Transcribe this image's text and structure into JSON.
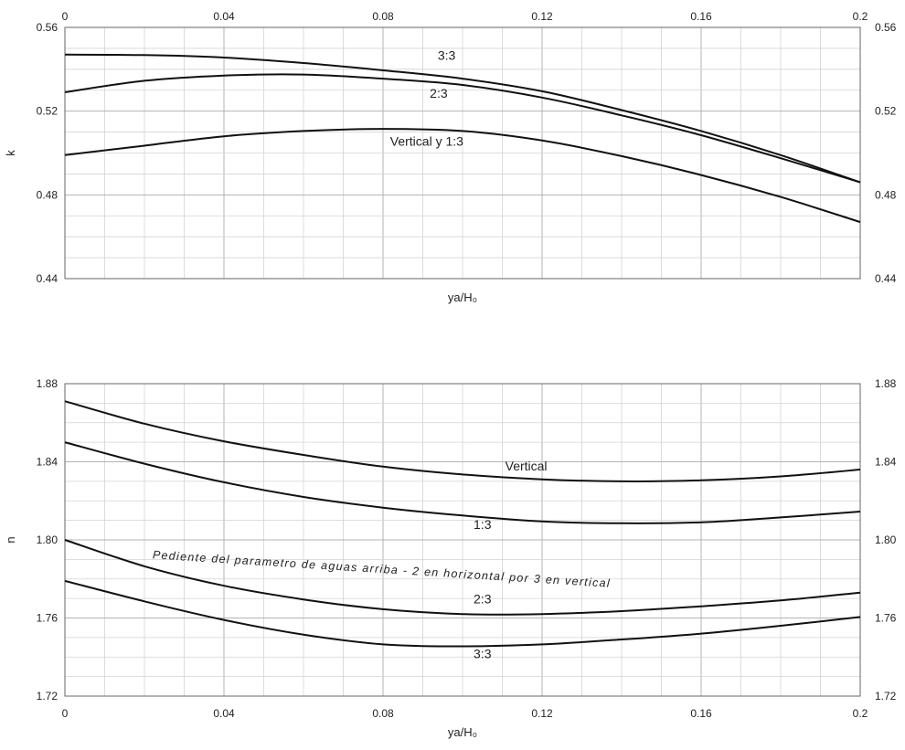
{
  "chart_data": [
    {
      "type": "line",
      "xlabel": "ya/H₀",
      "ylabel": "k",
      "xlim": [
        0,
        0.2
      ],
      "ylim": [
        0.44,
        0.56
      ],
      "x_ticks": [
        "0",
        "0.04",
        "0.08",
        "0.12",
        "0.16",
        "0.2"
      ],
      "y_ticks": [
        "0.56",
        "0.52",
        "0.48",
        "0.44"
      ],
      "x_tick_position": "top",
      "grid": true,
      "series": [
        {
          "name": "3:3",
          "x": [
            0,
            0.02,
            0.04,
            0.06,
            0.08,
            0.1,
            0.12,
            0.14,
            0.16,
            0.18,
            0.2
          ],
          "values": [
            0.547,
            0.5468,
            0.5456,
            0.543,
            0.5395,
            0.5355,
            0.5295,
            0.5205,
            0.5105,
            0.499,
            0.486
          ]
        },
        {
          "name": "2:3",
          "x": [
            0,
            0.02,
            0.04,
            0.06,
            0.08,
            0.1,
            0.12,
            0.14,
            0.16,
            0.18,
            0.2
          ],
          "values": [
            0.529,
            0.5345,
            0.537,
            0.5375,
            0.5355,
            0.5325,
            0.5265,
            0.518,
            0.5085,
            0.4975,
            0.486
          ]
        },
        {
          "name": "Vertical y 1:3",
          "x": [
            0,
            0.02,
            0.04,
            0.06,
            0.08,
            0.1,
            0.12,
            0.14,
            0.16,
            0.18,
            0.2
          ],
          "values": [
            0.499,
            0.5035,
            0.508,
            0.5105,
            0.5115,
            0.5105,
            0.506,
            0.4985,
            0.4895,
            0.479,
            0.467
          ]
        }
      ]
    },
    {
      "type": "line",
      "xlabel": "ya/H₀",
      "ylabel": "n",
      "xlim": [
        0,
        0.2
      ],
      "ylim": [
        1.72,
        1.88
      ],
      "x_ticks": [
        "0",
        "0.04",
        "0.08",
        "0.12",
        "0.16",
        "0.2"
      ],
      "y_ticks": [
        "1.88",
        "1.84",
        "1.80",
        "1.76",
        "1.72"
      ],
      "x_tick_position": "bottom",
      "grid": true,
      "annotation": "Pediente del parametro de aguas arriba - 2 en horizontal por 3 en vertical",
      "series": [
        {
          "name": "Vertical",
          "x": [
            0,
            0.02,
            0.04,
            0.06,
            0.08,
            0.1,
            0.12,
            0.14,
            0.16,
            0.18,
            0.2
          ],
          "values": [
            1.871,
            1.8595,
            1.8505,
            1.8435,
            1.8375,
            1.8335,
            1.831,
            1.83,
            1.8305,
            1.8325,
            1.836
          ]
        },
        {
          "name": "1:3",
          "x": [
            0,
            0.02,
            0.04,
            0.06,
            0.08,
            0.1,
            0.12,
            0.14,
            0.16,
            0.18,
            0.2
          ],
          "values": [
            1.85,
            1.839,
            1.8295,
            1.822,
            1.8165,
            1.8125,
            1.8095,
            1.8085,
            1.809,
            1.8115,
            1.8145
          ]
        },
        {
          "name": "2:3",
          "x": [
            0,
            0.02,
            0.04,
            0.06,
            0.08,
            0.1,
            0.12,
            0.14,
            0.16,
            0.18,
            0.2
          ],
          "values": [
            1.8,
            1.7865,
            1.7765,
            1.7695,
            1.7645,
            1.762,
            1.762,
            1.7635,
            1.766,
            1.769,
            1.773
          ]
        },
        {
          "name": "3:3",
          "x": [
            0,
            0.02,
            0.04,
            0.06,
            0.08,
            0.1,
            0.12,
            0.14,
            0.16,
            0.18,
            0.2
          ],
          "values": [
            1.779,
            1.7685,
            1.759,
            1.7515,
            1.7465,
            1.7455,
            1.7465,
            1.749,
            1.752,
            1.756,
            1.7605
          ]
        }
      ]
    }
  ]
}
